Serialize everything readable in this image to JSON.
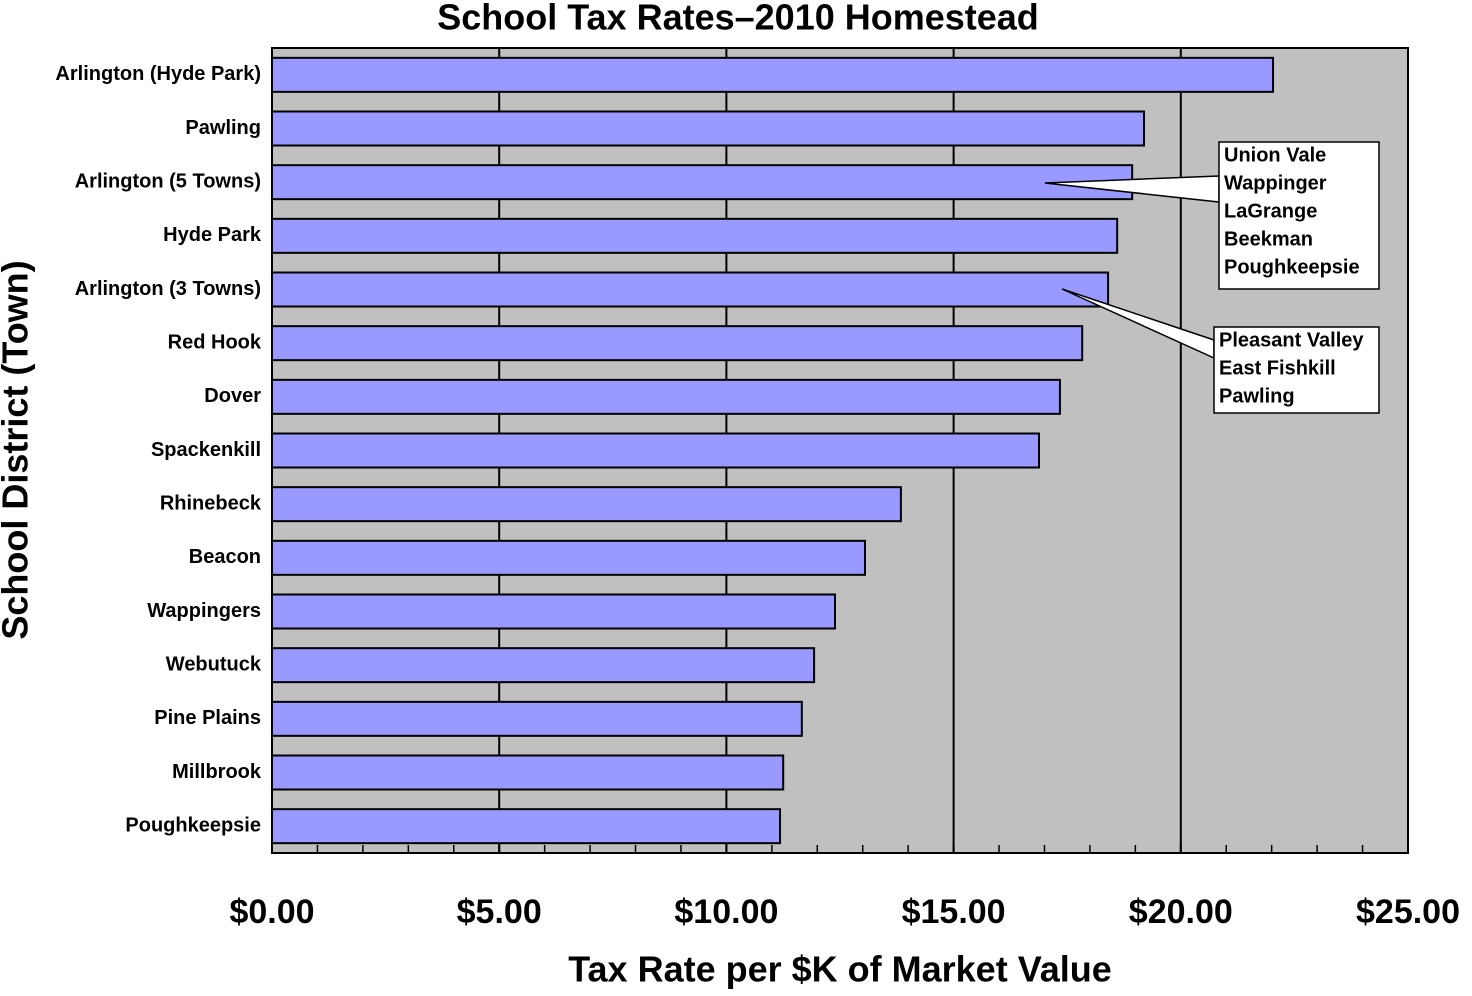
{
  "chart_data": {
    "type": "bar",
    "orientation": "horizontal",
    "title": "School Tax Rates–2010 Homestead",
    "x_label": "Tax Rate per $K of Market Value",
    "y_label": "School District (Town)",
    "categories": [
      "Arlington (Hyde Park)",
      "Pawling",
      "Arlington (5 Towns)",
      "Hyde Park",
      "Arlington (3 Towns)",
      "Red Hook",
      "Dover",
      "Spackenkill",
      "Rhinebeck",
      "Beacon",
      "Wappingers",
      "Webutuck",
      "Pine Plains",
      "Millbrook",
      "Poughkeepsie"
    ],
    "values": [
      22.03,
      19.19,
      18.93,
      18.6,
      18.4,
      17.83,
      17.34,
      16.88,
      13.84,
      13.05,
      12.39,
      11.93,
      11.66,
      11.25,
      11.18
    ],
    "color": "#9999ff",
    "xlim": [
      0,
      25
    ],
    "xticks": [
      {
        "value": 0,
        "label": "$0.00"
      },
      {
        "value": 5,
        "label": "$5.00"
      },
      {
        "value": 10,
        "label": "$10.00"
      },
      {
        "value": 15,
        "label": "$15.00"
      },
      {
        "value": 20,
        "label": "$20.00"
      },
      {
        "value": 25,
        "label": "$25.00"
      }
    ],
    "minor_xticks": [
      1,
      2,
      3,
      4,
      6,
      7,
      8,
      9,
      11,
      12,
      13,
      14,
      16,
      17,
      18,
      19,
      21,
      22,
      23,
      24
    ],
    "grid": true,
    "annotations": [
      {
        "lines": [
          "Union Vale",
          "Wappinger",
          "LaGrange",
          "Beekman",
          "Poughkeepsie"
        ]
      },
      {
        "lines": [
          "Pleasant Valley",
          "East Fishkill",
          "Pawling"
        ]
      }
    ]
  }
}
